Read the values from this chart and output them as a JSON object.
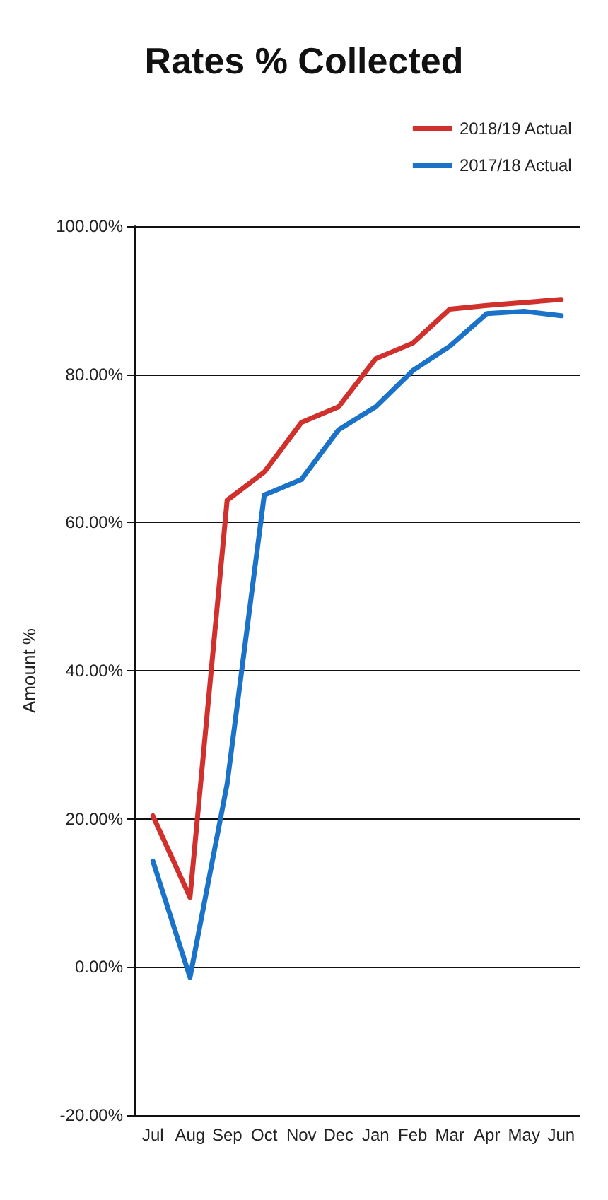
{
  "chart_data": {
    "type": "line",
    "title": "Rates % Collected",
    "ylabel": "Amount %",
    "categories": [
      "Jul",
      "Aug",
      "Sep",
      "Oct",
      "Nov",
      "Dec",
      "Jan",
      "Feb",
      "Mar",
      "Apr",
      "May",
      "Jun"
    ],
    "series": [
      {
        "name": "2018/19 Actual",
        "color": "#d0312d",
        "values": [
          20.4,
          9.4,
          63,
          66.8,
          73.5,
          75.6,
          82.1,
          84.2,
          88.8,
          89.3,
          89.7,
          90.1
        ]
      },
      {
        "name": "2017/18 Actual",
        "color": "#1a73c8",
        "values": [
          14.3,
          -1.4,
          24.7,
          63.7,
          65.8,
          72.5,
          75.6,
          80.5,
          83.8,
          88.2,
          88.5,
          87.9
        ]
      }
    ],
    "ylim": [
      -20,
      100
    ],
    "yticks": [
      {
        "value": -20,
        "label": "-20.00%"
      },
      {
        "value": 0,
        "label": "0.00%"
      },
      {
        "value": 20,
        "label": "20.00%"
      },
      {
        "value": 40,
        "label": "40.00%"
      },
      {
        "value": 60,
        "label": "60.00%"
      },
      {
        "value": 80,
        "label": "80.00%"
      },
      {
        "value": 100,
        "label": "100.00%"
      }
    ],
    "grid": "y",
    "legend": "right",
    "marker": "none",
    "line_style": "solid"
  }
}
